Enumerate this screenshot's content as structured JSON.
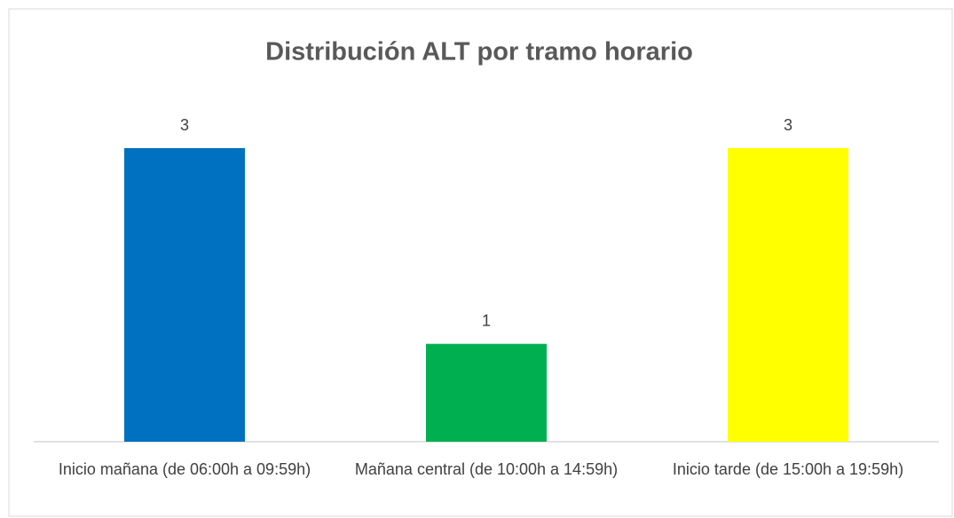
{
  "chart_data": {
    "type": "bar",
    "title": "Distribución ALT por tramo horario",
    "categories": [
      "Inicio mañana (de 06:00h a 09:59h)",
      "Mañana central (de 10:00h a 14:59h)",
      "Inicio tarde (de 15:00h a 19:59h)"
    ],
    "values": [
      3,
      1,
      3
    ],
    "colors": [
      "#0070c0",
      "#00b050",
      "#ffff00"
    ],
    "ylim": [
      0,
      3
    ]
  }
}
